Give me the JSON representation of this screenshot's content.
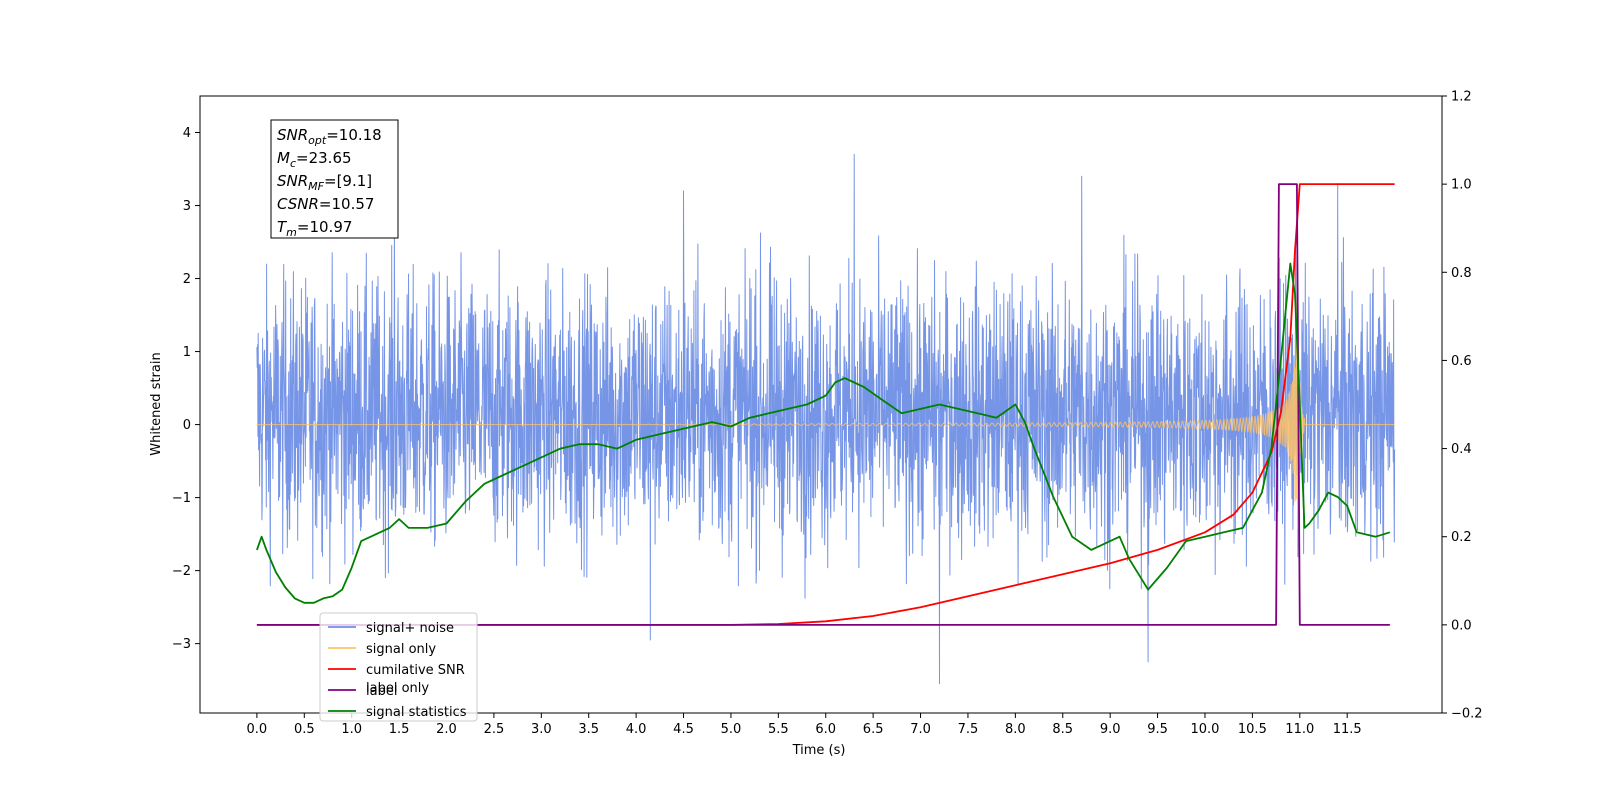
{
  "chart_data": {
    "type": "line",
    "title": "",
    "xlabel": "Time (s)",
    "ylabel": "Whitened strain",
    "y2label": "",
    "xlim": [
      -0.6,
      12.5
    ],
    "ylim": [
      -3.95,
      4.5
    ],
    "y2lim": [
      -0.2,
      1.2
    ],
    "x_ticks": [
      0.0,
      0.5,
      1.0,
      1.5,
      2.0,
      2.5,
      3.0,
      3.5,
      4.0,
      4.5,
      5.0,
      5.5,
      6.0,
      6.5,
      7.0,
      7.5,
      8.0,
      8.5,
      9.0,
      9.5,
      10.0,
      10.5,
      11.0,
      11.5
    ],
    "x_tick_labels": [
      "0.0",
      "0.5",
      "1.0",
      "1.5",
      "2.0",
      "2.5",
      "3.0",
      "3.5",
      "4.0",
      "4.5",
      "5.0",
      "5.5",
      "6.0",
      "6.5",
      "7.0",
      "7.5",
      "8.0",
      "8.5",
      "9.0",
      "9.5",
      "10.0",
      "10.5",
      "11.0",
      "11.5"
    ],
    "y_ticks": [
      -3,
      -2,
      -1,
      0,
      1,
      2,
      3,
      4
    ],
    "y_tick_labels": [
      "−3",
      "−2",
      "−1",
      "0",
      "1",
      "2",
      "3",
      "4"
    ],
    "y2_ticks": [
      -0.2,
      0.0,
      0.2,
      0.4,
      0.6,
      0.8,
      1.0,
      1.2
    ],
    "y2_tick_labels": [
      "−0.2",
      "0.0",
      "0.2",
      "0.4",
      "0.6",
      "0.8",
      "1.0",
      "1.2"
    ],
    "grid": false,
    "legend_position": "bottom-left",
    "legend": [
      {
        "label": "signal+ noise",
        "color": "#6f8fe6"
      },
      {
        "label": "signal only",
        "color": "#ffc266"
      },
      {
        "label": "cumilative SNR",
        "color": "#ff0000"
      },
      {
        "label": "label",
        "color": "#800080"
      },
      {
        "label": "signal statistics",
        "color": "#008000"
      }
    ],
    "hidden_legend_text": "label only",
    "info_box": {
      "lines": [
        {
          "sym": "SNR",
          "sub": "opt",
          "val": "=10.18"
        },
        {
          "sym": "M",
          "sub": "c",
          "val": "=23.65"
        },
        {
          "sym": "SNR",
          "sub": "MF",
          "val": "=[9.1]"
        },
        {
          "sym": "CSNR",
          "sub": "",
          "val": "=10.57"
        },
        {
          "sym": "T",
          "sub": "m",
          "val": "=10.97"
        }
      ]
    },
    "series": [
      {
        "name": "signal+ noise",
        "axis": "left",
        "color": "#6f8fe6",
        "style": "noise",
        "x_range": [
          0.0,
          12.0
        ],
        "typical_range": [
          -1.9,
          2.2
        ],
        "x_peaks": [
          6.3,
          4.5,
          11.4,
          8.7,
          7.2,
          9.4,
          4.15,
          1.45
        ],
        "y_peaks": [
          3.7,
          3.2,
          3.3,
          3.4,
          -3.55,
          -3.25,
          -2.95,
          2.9
        ]
      },
      {
        "name": "signal only",
        "axis": "left",
        "color": "#ffc266",
        "style": "chirp",
        "merger_time": 10.97,
        "peak_amplitude": 2.0
      },
      {
        "name": "cumilative SNR",
        "axis": "right",
        "color": "#ff0000",
        "x": [
          0.0,
          5.0,
          5.5,
          6.0,
          6.5,
          7.0,
          7.5,
          8.0,
          8.5,
          9.0,
          9.5,
          10.0,
          10.3,
          10.5,
          10.7,
          10.8,
          10.9,
          10.95,
          11.0,
          11.5,
          12.0
        ],
        "y": [
          0.0,
          0.0,
          0.002,
          0.008,
          0.02,
          0.04,
          0.065,
          0.09,
          0.115,
          0.14,
          0.17,
          0.21,
          0.25,
          0.3,
          0.39,
          0.48,
          0.65,
          0.85,
          1.0,
          1.0,
          1.0
        ]
      },
      {
        "name": "label",
        "axis": "right",
        "color": "#800080",
        "x": [
          0.0,
          10.75,
          10.78,
          10.97,
          11.0,
          11.95
        ],
        "y": [
          0.0,
          0.0,
          1.0,
          1.0,
          0.0,
          0.0
        ]
      },
      {
        "name": "signal statistics",
        "axis": "right",
        "color": "#008000",
        "x": [
          0.0,
          0.05,
          0.1,
          0.2,
          0.3,
          0.4,
          0.5,
          0.6,
          0.7,
          0.8,
          0.9,
          1.0,
          1.1,
          1.2,
          1.3,
          1.4,
          1.5,
          1.6,
          1.8,
          2.0,
          2.2,
          2.4,
          2.6,
          2.8,
          3.0,
          3.2,
          3.4,
          3.6,
          3.8,
          4.0,
          4.2,
          4.4,
          4.6,
          4.8,
          5.0,
          5.2,
          5.4,
          5.6,
          5.8,
          6.0,
          6.1,
          6.2,
          6.3,
          6.4,
          6.6,
          6.8,
          7.0,
          7.2,
          7.4,
          7.6,
          7.8,
          8.0,
          8.1,
          8.2,
          8.4,
          8.6,
          8.8,
          9.0,
          9.1,
          9.2,
          9.4,
          9.6,
          9.8,
          10.0,
          10.2,
          10.4,
          10.6,
          10.7,
          10.8,
          10.9,
          10.95,
          11.0,
          11.05,
          11.1,
          11.2,
          11.3,
          11.4,
          11.5,
          11.6,
          11.8,
          11.95
        ],
        "y": [
          0.17,
          0.2,
          0.17,
          0.12,
          0.085,
          0.06,
          0.05,
          0.05,
          0.06,
          0.065,
          0.08,
          0.13,
          0.19,
          0.2,
          0.21,
          0.22,
          0.24,
          0.22,
          0.22,
          0.23,
          0.28,
          0.32,
          0.34,
          0.36,
          0.38,
          0.4,
          0.41,
          0.41,
          0.4,
          0.42,
          0.43,
          0.44,
          0.45,
          0.46,
          0.45,
          0.47,
          0.48,
          0.49,
          0.5,
          0.52,
          0.55,
          0.56,
          0.55,
          0.54,
          0.51,
          0.48,
          0.49,
          0.5,
          0.49,
          0.48,
          0.47,
          0.5,
          0.46,
          0.4,
          0.29,
          0.2,
          0.17,
          0.19,
          0.2,
          0.15,
          0.08,
          0.13,
          0.19,
          0.2,
          0.21,
          0.22,
          0.3,
          0.4,
          0.6,
          0.82,
          0.75,
          0.5,
          0.22,
          0.23,
          0.26,
          0.3,
          0.29,
          0.27,
          0.21,
          0.2,
          0.21
        ]
      }
    ]
  }
}
